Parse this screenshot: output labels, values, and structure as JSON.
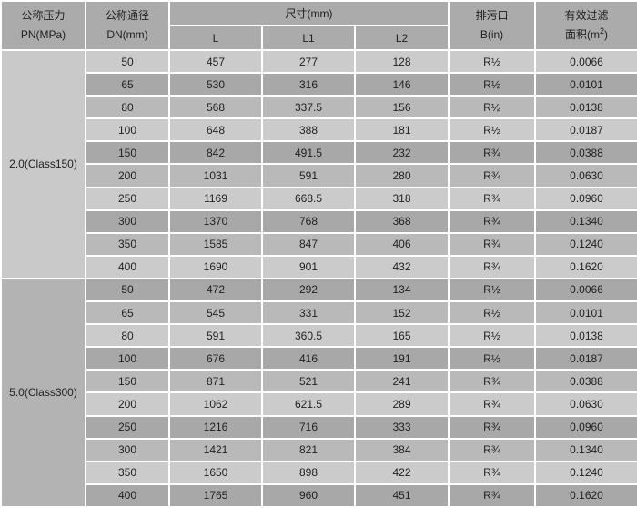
{
  "table": {
    "headers": {
      "pn_line1": "公称压力",
      "pn_line2": "PN(MPa)",
      "dn_line1": "公称通径",
      "dn_line2": "DN(mm)",
      "size_group": "尺寸(mm)",
      "size_cols": [
        "L",
        "L1",
        "L2"
      ],
      "drain_line1": "排污口",
      "drain_line2": "B(in)",
      "area_line1": "有效过滤",
      "area_line2_prefix": "面积(m",
      "area_sup": "2",
      "area_suffix": ")"
    },
    "sections": [
      {
        "pn": "2.0(Class150)",
        "rows": [
          [
            "50",
            "457",
            "277",
            "128",
            "R½",
            "0.0066"
          ],
          [
            "65",
            "530",
            "316",
            "146",
            "R½",
            "0.0101"
          ],
          [
            "80",
            "568",
            "337.5",
            "156",
            "R½",
            "0.0138"
          ],
          [
            "100",
            "648",
            "388",
            "181",
            "R½",
            "0.0187"
          ],
          [
            "150",
            "842",
            "491.5",
            "232",
            "R¾",
            "0.0388"
          ],
          [
            "200",
            "1031",
            "591",
            "280",
            "R¾",
            "0.0630"
          ],
          [
            "250",
            "1169",
            "668.5",
            "318",
            "R¾",
            "0.0960"
          ],
          [
            "300",
            "1370",
            "768",
            "368",
            "R¾",
            "0.1340"
          ],
          [
            "350",
            "1585",
            "847",
            "406",
            "R¾",
            "0.1240"
          ],
          [
            "400",
            "1690",
            "901",
            "432",
            "R¾",
            "0.1620"
          ]
        ]
      },
      {
        "pn": "5.0(Class300)",
        "rows": [
          [
            "50",
            "472",
            "292",
            "134",
            "R½",
            "0.0066"
          ],
          [
            "65",
            "545",
            "331",
            "152",
            "R½",
            "0.0101"
          ],
          [
            "80",
            "591",
            "360.5",
            "165",
            "R½",
            "0.0138"
          ],
          [
            "100",
            "676",
            "416",
            "191",
            "R½",
            "0.0187"
          ],
          [
            "150",
            "871",
            "521",
            "241",
            "R¾",
            "0.0388"
          ],
          [
            "200",
            "1062",
            "621.5",
            "289",
            "R¾",
            "0.0630"
          ],
          [
            "250",
            "1216",
            "716",
            "333",
            "R¾",
            "0.0960"
          ],
          [
            "300",
            "1421",
            "821",
            "384",
            "R¾",
            "0.1340"
          ],
          [
            "350",
            "1650",
            "898",
            "422",
            "R¾",
            "0.1240"
          ],
          [
            "400",
            "1765",
            "960",
            "451",
            "R¾",
            "0.1620"
          ]
        ]
      }
    ]
  },
  "colors": {
    "header_bg": "#ababab",
    "row_light": "#cbcbcb",
    "row_dark": "#a8a8a8",
    "row_medium": "#b9b9b9",
    "section1_bg": "#c9c9c9",
    "section2_bg": "#b3b3b3",
    "grid_line": "#ffffff",
    "text": "#1f1f1f"
  }
}
